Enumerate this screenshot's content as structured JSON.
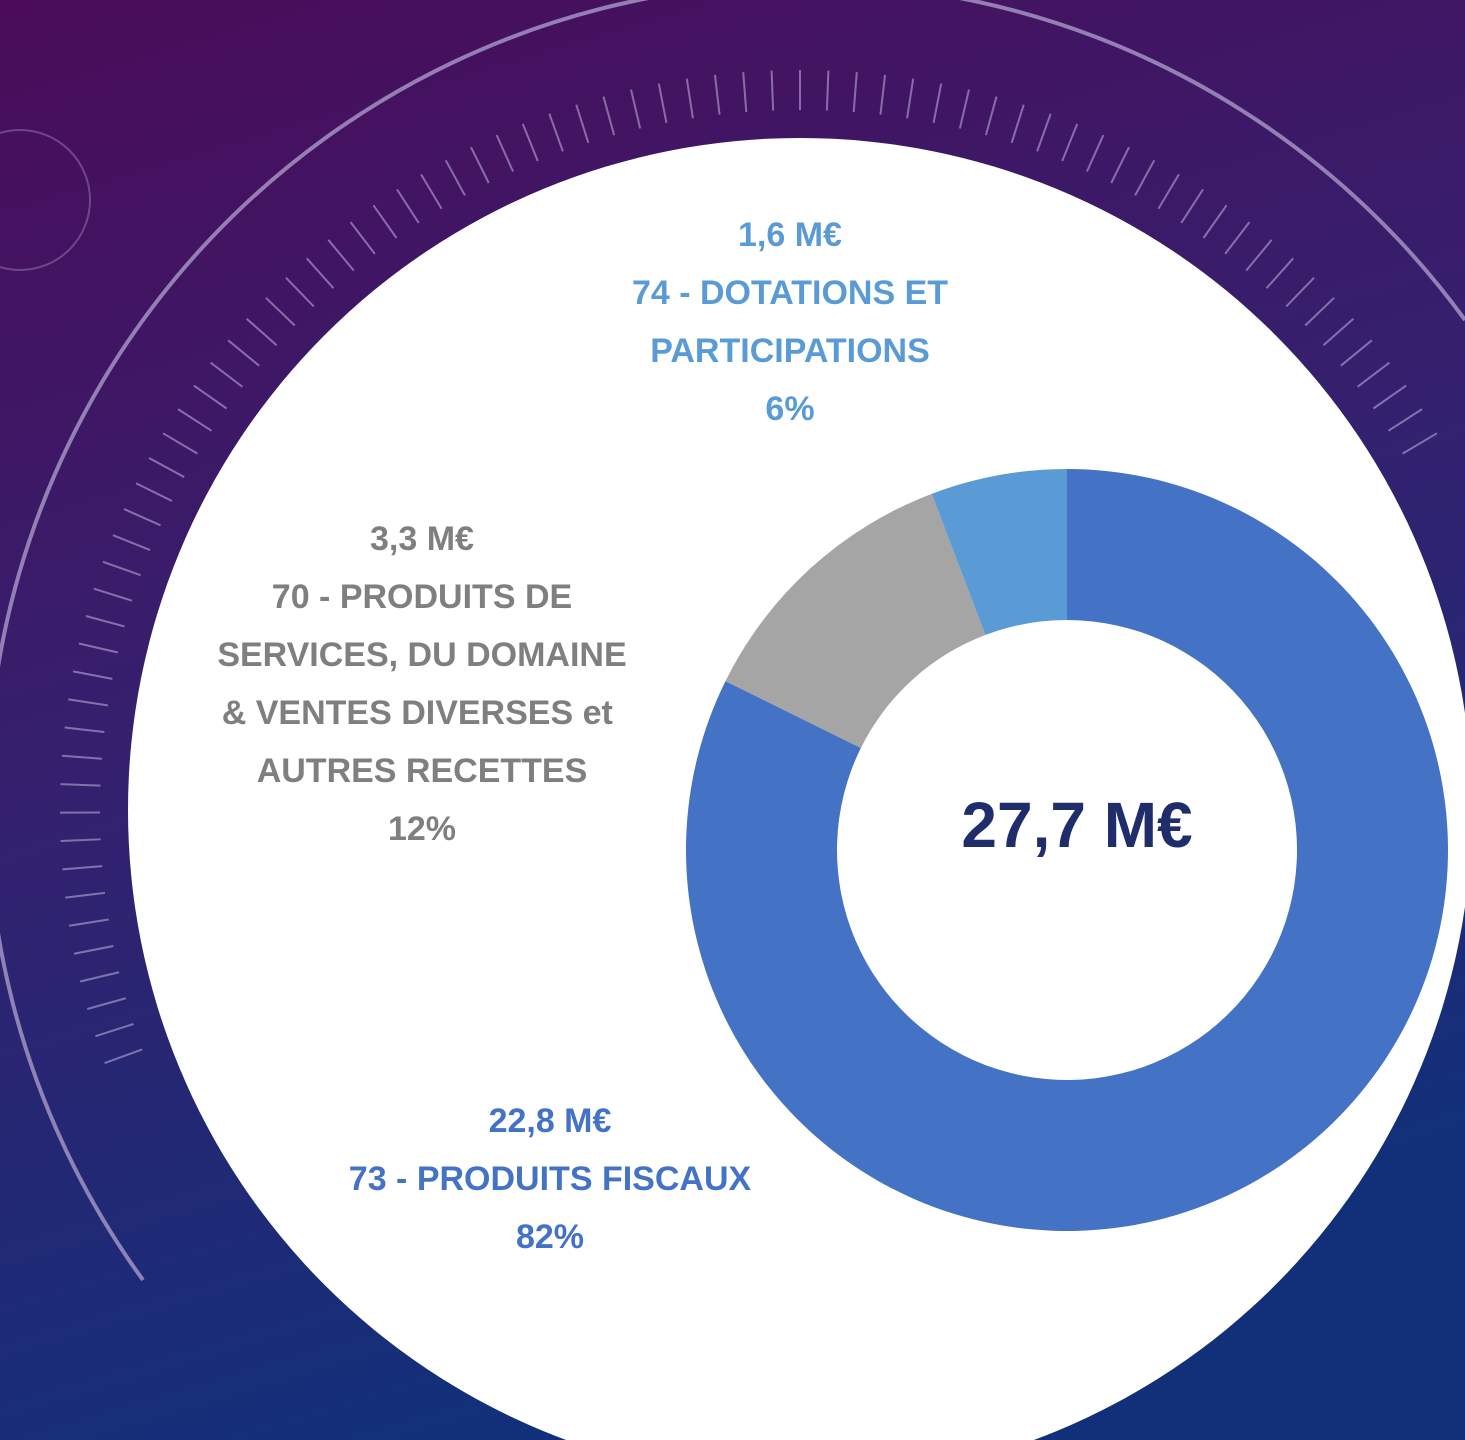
{
  "chart_data": {
    "type": "donut",
    "categories": [
      "73 - PRODUITS FISCAUX",
      "70 - PRODUITS DE SERVICES, DU DOMAINE & VENTES DIVERSES et  AUTRES RECETTES",
      "74 - DOTATIONS ET PARTICIPATIONS"
    ],
    "values": [
      22.8,
      3.3,
      1.6
    ],
    "value_labels": [
      "22,8 M€",
      "3,3 M€",
      "1,6 M€"
    ],
    "percents": [
      82,
      12,
      6
    ],
    "percent_labels": [
      "82%",
      "12%",
      "6%"
    ],
    "colors": [
      "#4472c4",
      "#a5a5a5",
      "#5b9bd5"
    ],
    "label_colors": [
      "#4472c4",
      "#7f7f7f",
      "#5b9bd5"
    ],
    "center_label": "27,7 M€"
  }
}
